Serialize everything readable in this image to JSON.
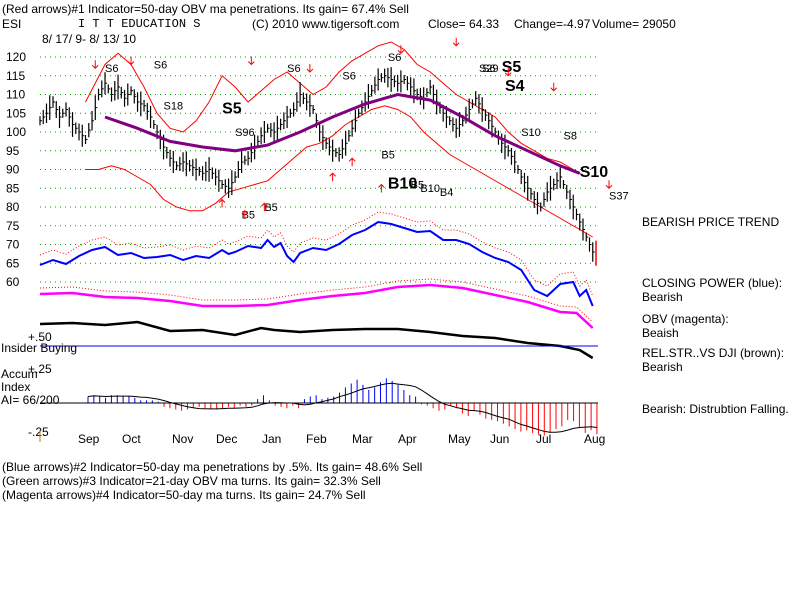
{
  "header": {
    "line1": "(Red arrows)#1 Indicator=50-day OBV ma penetrations. Its gain= 67.4% Sell",
    "ticker": "ESI",
    "company": "I T T EDUCATION S",
    "copyright": "(C) 2010 www.tigersoft.com",
    "close": "Close= 64.33",
    "change": "Change=-4.97",
    "volume": "Volume= 29050",
    "daterange": "8/ 17/ 9- 8/ 13/ 10"
  },
  "right_panel": {
    "trend": "BEARISH PRICE TREND",
    "cp_title": "CLOSING POWER (blue):",
    "cp_value": "Bearish",
    "obv_title": "OBV (magenta):",
    "obv_value": "Beaish",
    "rs_title": "REL.STR..VS DJI (brown):",
    "rs_value": "Bearish",
    "accum_note": "Bearish: Distrubtion Falling."
  },
  "left_panel": {
    "insider": "Insider Buying",
    "accum_l1": "Accum",
    "accum_l2": "Index",
    "accum_l3": "AI= 66/200"
  },
  "footer": {
    "line1": "(Blue arrows)#2 Indicator=50-day ma penetrations by .5%. Its gain= 48.6% Sell",
    "line2": "(Green arrows)#3 Indicator=21-day OBV ma turns. Its gain= 32.3% Sell",
    "line3": "(Magenta arrows)#4 Indicator=50-day ma turns. Its gain= 24.7% Sell"
  },
  "colors": {
    "price": "#000000",
    "bands": "#ff0000",
    "ma": "#800080",
    "closing_power": "#0000ff",
    "obv": "#ff00ff",
    "relstr": "#000000",
    "accum_pos": "#0000ff",
    "accum_neg": "#ff0000"
  },
  "chart_data": {
    "type": "line",
    "x_axis": "months",
    "ylim": [
      55,
      125
    ],
    "y_ticks": [
      60,
      65,
      70,
      75,
      80,
      85,
      90,
      95,
      100,
      105,
      110,
      115,
      120
    ],
    "month_labels": [
      "Sep",
      "Oct",
      "Nov",
      "Dec",
      "Jan",
      "Feb",
      "Mar",
      "Apr",
      "May",
      "Jun",
      "Jul",
      "Aug"
    ],
    "accum_ticks": [
      "+.50",
      "+.25",
      "-.25"
    ],
    "price_series": [
      [
        0,
        103
      ],
      [
        2,
        105
      ],
      [
        4,
        108
      ],
      [
        6,
        104
      ],
      [
        8,
        106
      ],
      [
        10,
        102
      ],
      [
        12,
        100
      ],
      [
        14,
        98
      ],
      [
        16,
        103
      ],
      [
        18,
        110
      ],
      [
        20,
        113
      ],
      [
        22,
        110
      ],
      [
        24,
        112
      ],
      [
        26,
        109
      ],
      [
        28,
        111
      ],
      [
        30,
        108
      ],
      [
        32,
        107
      ],
      [
        34,
        104
      ],
      [
        36,
        100
      ],
      [
        38,
        96
      ],
      [
        40,
        93
      ],
      [
        42,
        91
      ],
      [
        44,
        92
      ],
      [
        46,
        91
      ],
      [
        48,
        90
      ],
      [
        50,
        89
      ],
      [
        52,
        90
      ],
      [
        54,
        88
      ],
      [
        56,
        86
      ],
      [
        58,
        85
      ],
      [
        60,
        88
      ],
      [
        62,
        92
      ],
      [
        64,
        93
      ],
      [
        66,
        96
      ],
      [
        68,
        99
      ],
      [
        70,
        101
      ],
      [
        72,
        100
      ],
      [
        74,
        102
      ],
      [
        76,
        104
      ],
      [
        78,
        106
      ],
      [
        80,
        110
      ],
      [
        82,
        108
      ],
      [
        84,
        106
      ],
      [
        86,
        100
      ],
      [
        88,
        97
      ],
      [
        90,
        95
      ],
      [
        92,
        94
      ],
      [
        94,
        97
      ],
      [
        96,
        101
      ],
      [
        98,
        105
      ],
      [
        100,
        108
      ],
      [
        102,
        111
      ],
      [
        104,
        114
      ],
      [
        106,
        115
      ],
      [
        108,
        114
      ],
      [
        110,
        113
      ],
      [
        112,
        114
      ],
      [
        114,
        112
      ],
      [
        116,
        110
      ],
      [
        118,
        109
      ],
      [
        120,
        112
      ],
      [
        122,
        108
      ],
      [
        124,
        105
      ],
      [
        126,
        103
      ],
      [
        128,
        101
      ],
      [
        130,
        103
      ],
      [
        132,
        106
      ],
      [
        134,
        109
      ],
      [
        136,
        106
      ],
      [
        138,
        103
      ],
      [
        140,
        100
      ],
      [
        142,
        97
      ],
      [
        144,
        95
      ],
      [
        146,
        92
      ],
      [
        148,
        88
      ],
      [
        150,
        85
      ],
      [
        152,
        82
      ],
      [
        154,
        80
      ],
      [
        156,
        84
      ],
      [
        158,
        86
      ],
      [
        160,
        88
      ],
      [
        162,
        84
      ],
      [
        164,
        80
      ],
      [
        166,
        76
      ],
      [
        168,
        72
      ],
      [
        170,
        68
      ],
      [
        171,
        64.33
      ]
    ],
    "ma_series": [
      [
        20,
        104
      ],
      [
        30,
        101
      ],
      [
        40,
        97.5
      ],
      [
        50,
        96
      ],
      [
        60,
        95
      ],
      [
        70,
        96.5
      ],
      [
        80,
        100
      ],
      [
        90,
        104
      ],
      [
        100,
        107.5
      ],
      [
        110,
        110
      ],
      [
        120,
        108.5
      ],
      [
        130,
        104
      ],
      [
        140,
        99
      ],
      [
        150,
        95
      ],
      [
        160,
        91
      ],
      [
        166,
        89
      ]
    ],
    "upper_band": [
      [
        14,
        108
      ],
      [
        20,
        118
      ],
      [
        24,
        121
      ],
      [
        28,
        118
      ],
      [
        32,
        112
      ],
      [
        36,
        105
      ],
      [
        40,
        101
      ],
      [
        44,
        100
      ],
      [
        48,
        103
      ],
      [
        52,
        108
      ],
      [
        56,
        115
      ],
      [
        60,
        112
      ],
      [
        64,
        108
      ],
      [
        68,
        111
      ],
      [
        72,
        114
      ],
      [
        76,
        116
      ],
      [
        80,
        113
      ],
      [
        84,
        110
      ],
      [
        88,
        112
      ],
      [
        92,
        116
      ],
      [
        96,
        119
      ],
      [
        100,
        121
      ],
      [
        104,
        123
      ],
      [
        108,
        124
      ],
      [
        112,
        122
      ],
      [
        116,
        118
      ],
      [
        120,
        116
      ],
      [
        124,
        113
      ],
      [
        128,
        110
      ],
      [
        132,
        108
      ],
      [
        136,
        106
      ],
      [
        140,
        104
      ],
      [
        144,
        100
      ],
      [
        148,
        97
      ],
      [
        152,
        95
      ],
      [
        156,
        93
      ],
      [
        160,
        92
      ],
      [
        164,
        90
      ],
      [
        168,
        88
      ]
    ],
    "lower_band": [
      [
        14,
        90
      ],
      [
        18,
        90
      ],
      [
        22,
        91
      ],
      [
        26,
        90
      ],
      [
        30,
        88
      ],
      [
        34,
        86
      ],
      [
        38,
        82
      ],
      [
        42,
        80
      ],
      [
        46,
        79
      ],
      [
        50,
        79
      ],
      [
        54,
        81
      ],
      [
        58,
        84
      ],
      [
        62,
        85
      ],
      [
        66,
        86
      ],
      [
        70,
        87
      ],
      [
        74,
        90
      ],
      [
        78,
        93
      ],
      [
        82,
        96
      ],
      [
        86,
        97
      ],
      [
        90,
        99
      ],
      [
        94,
        102
      ],
      [
        98,
        104
      ],
      [
        102,
        106
      ],
      [
        106,
        107
      ],
      [
        110,
        106
      ],
      [
        114,
        104
      ],
      [
        118,
        100
      ],
      [
        122,
        97
      ],
      [
        126,
        94
      ],
      [
        130,
        92
      ],
      [
        134,
        90
      ],
      [
        138,
        88
      ],
      [
        142,
        86
      ],
      [
        146,
        84
      ],
      [
        150,
        82
      ],
      [
        154,
        80
      ],
      [
        158,
        78
      ],
      [
        162,
        76
      ],
      [
        166,
        74
      ],
      [
        170,
        72
      ]
    ],
    "closing_power": [
      [
        0,
        265
      ],
      [
        4,
        260
      ],
      [
        8,
        264
      ],
      [
        12,
        256
      ],
      [
        16,
        250
      ],
      [
        20,
        247
      ],
      [
        24,
        255
      ],
      [
        28,
        253
      ],
      [
        32,
        258
      ],
      [
        36,
        257
      ],
      [
        40,
        255
      ],
      [
        44,
        260
      ],
      [
        48,
        256
      ],
      [
        52,
        258
      ],
      [
        56,
        250
      ],
      [
        58,
        254
      ],
      [
        60,
        252
      ],
      [
        64,
        246
      ],
      [
        68,
        248
      ],
      [
        70,
        240
      ],
      [
        72,
        247
      ],
      [
        74,
        243
      ],
      [
        76,
        256
      ],
      [
        78,
        262
      ],
      [
        80,
        253
      ],
      [
        84,
        248
      ],
      [
        88,
        250
      ],
      [
        92,
        244
      ],
      [
        96,
        235
      ],
      [
        100,
        230
      ],
      [
        104,
        222
      ],
      [
        108,
        224
      ],
      [
        112,
        228
      ],
      [
        116,
        232
      ],
      [
        120,
        231
      ],
      [
        124,
        240
      ],
      [
        128,
        240
      ],
      [
        132,
        244
      ],
      [
        136,
        252
      ],
      [
        140,
        258
      ],
      [
        144,
        262
      ],
      [
        148,
        270
      ],
      [
        150,
        280
      ],
      [
        152,
        290
      ],
      [
        156,
        296
      ],
      [
        160,
        284
      ],
      [
        164,
        282
      ],
      [
        166,
        296
      ],
      [
        168,
        290
      ],
      [
        170,
        306
      ]
    ],
    "obv": [
      [
        0,
        294
      ],
      [
        10,
        293
      ],
      [
        20,
        297
      ],
      [
        30,
        298
      ],
      [
        40,
        301
      ],
      [
        50,
        306
      ],
      [
        60,
        306
      ],
      [
        70,
        305
      ],
      [
        80,
        300
      ],
      [
        90,
        296
      ],
      [
        100,
        293
      ],
      [
        110,
        287
      ],
      [
        120,
        285
      ],
      [
        130,
        288
      ],
      [
        140,
        295
      ],
      [
        150,
        302
      ],
      [
        160,
        312
      ],
      [
        165,
        313
      ],
      [
        170,
        328
      ]
    ],
    "relstr": [
      [
        0,
        324
      ],
      [
        10,
        323
      ],
      [
        20,
        325
      ],
      [
        30,
        322
      ],
      [
        40,
        331
      ],
      [
        50,
        330
      ],
      [
        60,
        335
      ],
      [
        68,
        328
      ],
      [
        72,
        330
      ],
      [
        80,
        332
      ],
      [
        90,
        330
      ],
      [
        100,
        329
      ],
      [
        110,
        329
      ],
      [
        120,
        332
      ],
      [
        130,
        336
      ],
      [
        140,
        338
      ],
      [
        150,
        343
      ],
      [
        160,
        346
      ],
      [
        166,
        350
      ],
      [
        170,
        358
      ]
    ],
    "accum": [
      0.05,
      0.06,
      0.05,
      0.04,
      0.06,
      0.06,
      0.05,
      0.05,
      0.04,
      0.02,
      0.02,
      0.02,
      0.01,
      -0.03,
      -0.04,
      -0.05,
      -0.06,
      -0.05,
      -0.04,
      -0.03,
      -0.04,
      -0.05,
      -0.05,
      -0.04,
      -0.03,
      -0.04,
      -0.02,
      -0.03,
      -0.02,
      0.03,
      0.06,
      0.02,
      -0.02,
      -0.03,
      -0.04,
      -0.02,
      -0.04,
      0.03,
      0.05,
      0.06,
      0.03,
      0.04,
      0.05,
      0.08,
      0.12,
      0.15,
      0.18,
      0.14,
      0.1,
      0.12,
      0.16,
      0.19,
      0.17,
      0.14,
      0.1,
      0.06,
      0.05,
      -0.01,
      -0.02,
      -0.04,
      -0.06,
      -0.05,
      -0.02,
      -0.04,
      -0.08,
      -0.1,
      -0.06,
      -0.09,
      -0.12,
      -0.13,
      -0.14,
      -0.16,
      -0.18,
      -0.2,
      -0.22,
      -0.21,
      -0.23,
      -0.24,
      -0.25,
      -0.23,
      -0.2,
      -0.18,
      -0.13,
      -0.14,
      -0.19,
      -0.23,
      -0.21,
      -0.24
    ],
    "annotations": [
      {
        "text": "S6",
        "x": 20,
        "y": 116,
        "size": "small"
      },
      {
        "text": "S6",
        "x": 35,
        "y": 117,
        "size": "small"
      },
      {
        "text": "S6",
        "x": 76,
        "y": 116,
        "size": "small"
      },
      {
        "text": "S6",
        "x": 93,
        "y": 114,
        "size": "small"
      },
      {
        "text": "S6",
        "x": 107,
        "y": 119,
        "size": "small"
      },
      {
        "text": "S6",
        "x": 136,
        "y": 116,
        "size": "small"
      },
      {
        "text": "S18",
        "x": 38,
        "y": 106,
        "size": "small"
      },
      {
        "text": "S5",
        "x": 56,
        "y": 105,
        "size": "big"
      },
      {
        "text": "S96",
        "x": 60,
        "y": 99,
        "size": "small"
      },
      {
        "text": "S5",
        "x": 142,
        "y": 116,
        "size": "big"
      },
      {
        "text": "S4",
        "x": 143,
        "y": 111,
        "size": "big"
      },
      {
        "text": "S29",
        "x": 135,
        "y": 116,
        "size": "small"
      },
      {
        "text": "S10",
        "x": 148,
        "y": 99,
        "size": "small"
      },
      {
        "text": "S8",
        "x": 161,
        "y": 98,
        "size": "small"
      },
      {
        "text": "S10",
        "x": 166,
        "y": 88,
        "size": "big"
      },
      {
        "text": "S37",
        "x": 175,
        "y": 82,
        "size": "small"
      },
      {
        "text": "B5",
        "x": 105,
        "y": 93,
        "size": "small"
      },
      {
        "text": "B10",
        "x": 107,
        "y": 85,
        "size": "big"
      },
      {
        "text": "B5",
        "x": 114,
        "y": 85,
        "size": "small"
      },
      {
        "text": "B10",
        "x": 117,
        "y": 84,
        "size": "small"
      },
      {
        "text": "B4",
        "x": 123,
        "y": 83,
        "size": "small"
      },
      {
        "text": "B5",
        "x": 62,
        "y": 77,
        "size": "small"
      },
      {
        "text": "B5",
        "x": 69,
        "y": 79,
        "size": "small"
      }
    ]
  }
}
